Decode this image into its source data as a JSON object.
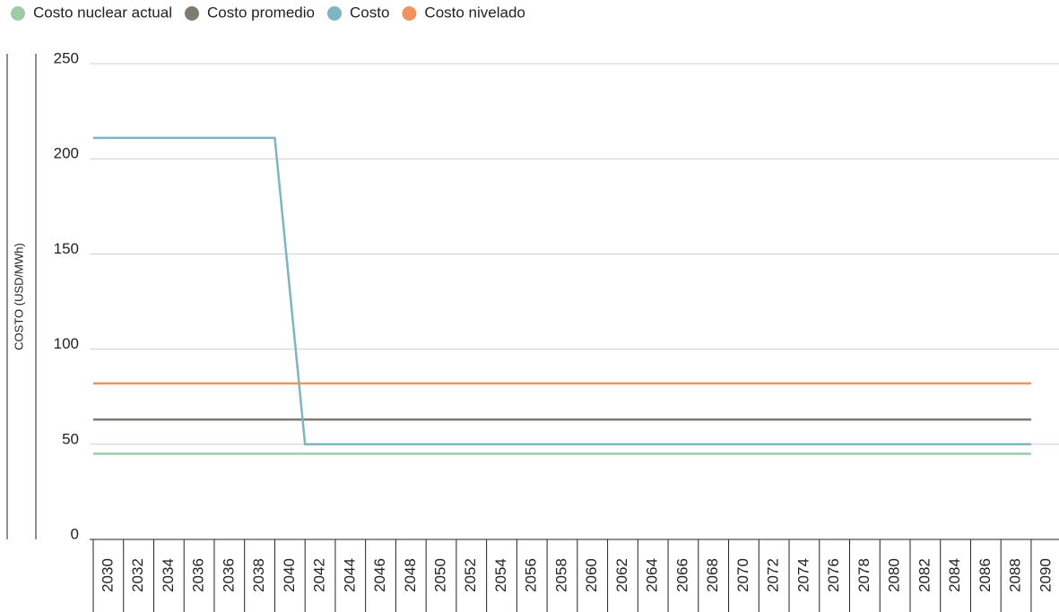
{
  "chart_data": {
    "type": "line",
    "y_label": "COSTO (USD/MWh)",
    "categories": [
      "2030",
      "2032",
      "2034",
      "2036",
      "2036",
      "2038",
      "2040",
      "2042",
      "2044",
      "2046",
      "2048",
      "2050",
      "2052",
      "2054",
      "2056",
      "2058",
      "2060",
      "2062",
      "2064",
      "2066",
      "2068",
      "2070",
      "2072",
      "2074",
      "2076",
      "2078",
      "2080",
      "2082",
      "2084",
      "2086",
      "2088",
      "2090"
    ],
    "series": [
      {
        "name": "Costo nuclear actual",
        "color": "#9fcaa6",
        "values": [
          45,
          45,
          45,
          45,
          45,
          45,
          45,
          45,
          45,
          45,
          45,
          45,
          45,
          45,
          45,
          45,
          45,
          45,
          45,
          45,
          45,
          45,
          45,
          45,
          45,
          45,
          45,
          45,
          45,
          45,
          45,
          45
        ]
      },
      {
        "name": "Costo promedio",
        "color": "#7f7b73",
        "values": [
          63,
          63,
          63,
          63,
          63,
          63,
          63,
          63,
          63,
          63,
          63,
          63,
          63,
          63,
          63,
          63,
          63,
          63,
          63,
          63,
          63,
          63,
          63,
          63,
          63,
          63,
          63,
          63,
          63,
          63,
          63,
          63
        ]
      },
      {
        "name": "Costo",
        "color": "#7fb4c3",
        "values": [
          211,
          211,
          211,
          211,
          211,
          211,
          211,
          50,
          50,
          50,
          50,
          50,
          50,
          50,
          50,
          50,
          50,
          50,
          50,
          50,
          50,
          50,
          50,
          50,
          50,
          50,
          50,
          50,
          50,
          50,
          50,
          50
        ]
      },
      {
        "name": "Costo nivelado",
        "color": "#f0935c",
        "values": [
          82,
          82,
          82,
          82,
          82,
          82,
          82,
          82,
          82,
          82,
          82,
          82,
          82,
          82,
          82,
          82,
          82,
          82,
          82,
          82,
          82,
          82,
          82,
          82,
          82,
          82,
          82,
          82,
          82,
          82,
          82,
          82
        ]
      }
    ],
    "ylim": [
      0,
      250
    ],
    "yticks": [
      0,
      50,
      100,
      150,
      200,
      250
    ],
    "grid": true
  }
}
